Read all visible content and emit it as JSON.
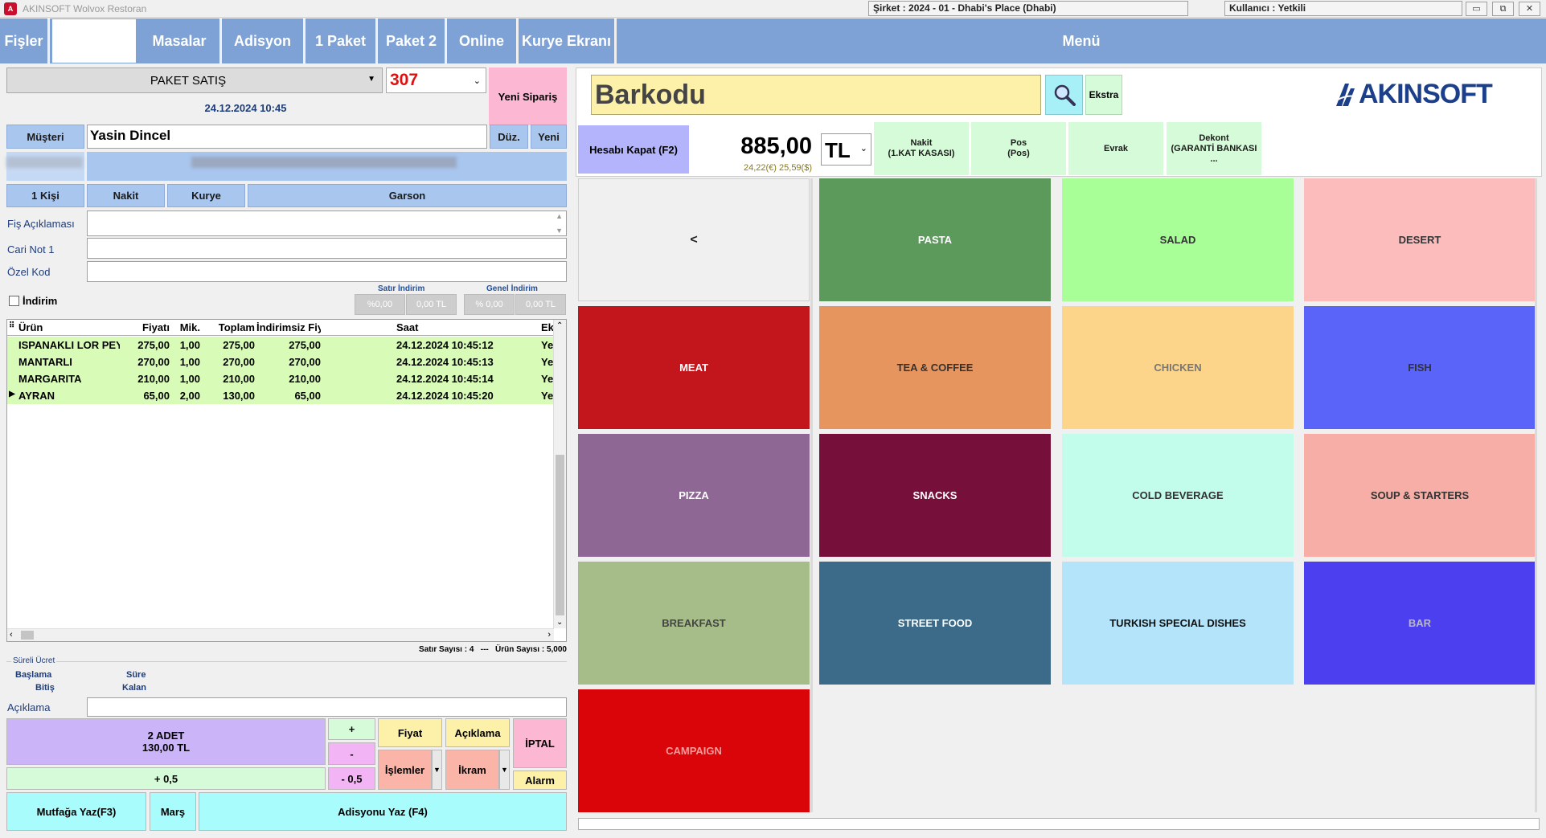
{
  "window": {
    "app_title": "AKINSOFT Wolvox Restoran",
    "company": "Şirket : 2024 - 01 - Dhabi's Place (Dhabi)",
    "user": "Kullanıcı : Yetkili",
    "minimize": "▭",
    "restore": "⧉",
    "close": "✕"
  },
  "nav": {
    "fisler": "Fişler",
    "masalar": "Masalar",
    "adisyon": "Adisyon",
    "paket1": "1 Paket",
    "paket2": "Paket 2",
    "online": "Online",
    "kurye_ekrani": "Kurye Ekranı",
    "menu": "Menü"
  },
  "order": {
    "type": "PAKET SATIŞ",
    "number": "307",
    "datetime": "24.12.2024 10:45",
    "new_order": "Yeni Sipariş",
    "musteri_label": "Müşteri",
    "customer": "Yasin Dincel",
    "duz": "Düz.",
    "yeni": "Yeni",
    "kisi": "1 Kişi",
    "nakit": "Nakit",
    "kurye": "Kurye",
    "garson": "Garson",
    "fis_aciklamasi": "Fiş Açıklaması",
    "cari_not": "Cari Not 1",
    "ozel_kod": "Özel Kod",
    "indirim": "İndirim",
    "satir_indirim": "Satır İndirim",
    "genel_indirim": "Genel İndirim",
    "pct1": "%0,00",
    "amt1": "0,00 TL",
    "pct2": "% 0,00",
    "amt2": "0,00 TL"
  },
  "grid": {
    "headers": [
      "Ürün",
      "Fiyatı",
      "Mik.",
      "Toplam",
      "İndirimsiz Fiyat",
      "Saat",
      "Ek"
    ],
    "rows": [
      [
        "ISPANAKLI LOR PEYNİRİ",
        "275,00",
        "1,00",
        "275,00",
        "275,00",
        "24.12.2024 10:45:12",
        "Ye"
      ],
      [
        "MANTARLI",
        "270,00",
        "1,00",
        "270,00",
        "270,00",
        "24.12.2024 10:45:13",
        "Ye"
      ],
      [
        "MARGARITA",
        "210,00",
        "1,00",
        "210,00",
        "210,00",
        "24.12.2024 10:45:14",
        "Ye"
      ],
      [
        "AYRAN",
        "65,00",
        "2,00",
        "130,00",
        "65,00",
        "24.12.2024 10:45:20",
        "Ye"
      ]
    ],
    "footer": "Satır Sayısı : 4   ---   Ürün Sayısı : 5,000"
  },
  "sureli": {
    "title": "Süreli Ücret",
    "baslama": "Başlama",
    "bitis": "Bitiş",
    "sure": "Süre",
    "kalan": "Kalan",
    "aciklama": "Açıklama"
  },
  "actions": {
    "adet": "2 ADET",
    "adet_total": "130,00 TL",
    "plus": "+",
    "minus": "-",
    "plus_half": "+ 0,5",
    "minus_half": "- 0,5",
    "fiyat": "Fiyat",
    "aciklama": "Açıklama",
    "iptal": "İPTAL",
    "islemler": "İşlemler",
    "ikram": "İkram",
    "alarm": "Alarm",
    "mutfaga": "Mutfağa Yaz(F3)",
    "mars": "Marş",
    "adisyonu": "Adisyonu Yaz (F4)"
  },
  "right": {
    "barcode": "Barkodu",
    "ekstra": "Ekstra",
    "logo": "AKINSOFT",
    "hesabi_kapat": "Hesabı Kapat (F2)",
    "total": "885,00",
    "currency": "TL",
    "fx": "24,22(€) 25,59($)",
    "payments": [
      {
        "t": "Nakit",
        "s": "(1.KAT KASASI)"
      },
      {
        "t": "Pos",
        "s": "(Pos)"
      },
      {
        "t": "Evrak",
        "s": ""
      },
      {
        "t": "Dekont",
        "s": "(GARANTİ BANKASI ..."
      }
    ]
  },
  "categories": [
    {
      "name": "<",
      "bg": "#f0f0f0",
      "fg": "#222"
    },
    {
      "name": "PASTA",
      "bg": "#5c9a5b",
      "fg": "#ffffff"
    },
    {
      "name": "SALAD",
      "bg": "#a8ff98",
      "fg": "#333333"
    },
    {
      "name": "DESERT",
      "bg": "#fdbcbc",
      "fg": "#333333"
    },
    {
      "name": "MEAT",
      "bg": "#c3161c",
      "fg": "#ffffff"
    },
    {
      "name": "TEA & COFFEE",
      "bg": "#e7955e",
      "fg": "#333333"
    },
    {
      "name": "CHICKEN",
      "bg": "#fcd48a",
      "fg": "#777777"
    },
    {
      "name": "FISH",
      "bg": "#5a64f8",
      "fg": "#333333"
    },
    {
      "name": "PIZZA",
      "bg": "#8e6794",
      "fg": "#ffffff"
    },
    {
      "name": "SNACKS",
      "bg": "#760f3a",
      "fg": "#ffffff"
    },
    {
      "name": "COLD BEVERAGE",
      "bg": "#c2fdec",
      "fg": "#333333"
    },
    {
      "name": "SOUP & STARTERS",
      "bg": "#f7aea6",
      "fg": "#333333"
    },
    {
      "name": "BREAKFAST",
      "bg": "#a6bd8a",
      "fg": "#444444"
    },
    {
      "name": "STREET FOOD",
      "bg": "#3c6b8a",
      "fg": "#ffffff"
    },
    {
      "name": "TURKISH SPECIAL DISHES",
      "bg": "#b4e4fa",
      "fg": "#111111"
    },
    {
      "name": "BAR",
      "bg": "#4b3ff0",
      "fg": "#bbbbbb"
    },
    {
      "name": "CAMPAIGN",
      "bg": "#d90508",
      "fg": "#ff9a9a"
    }
  ]
}
